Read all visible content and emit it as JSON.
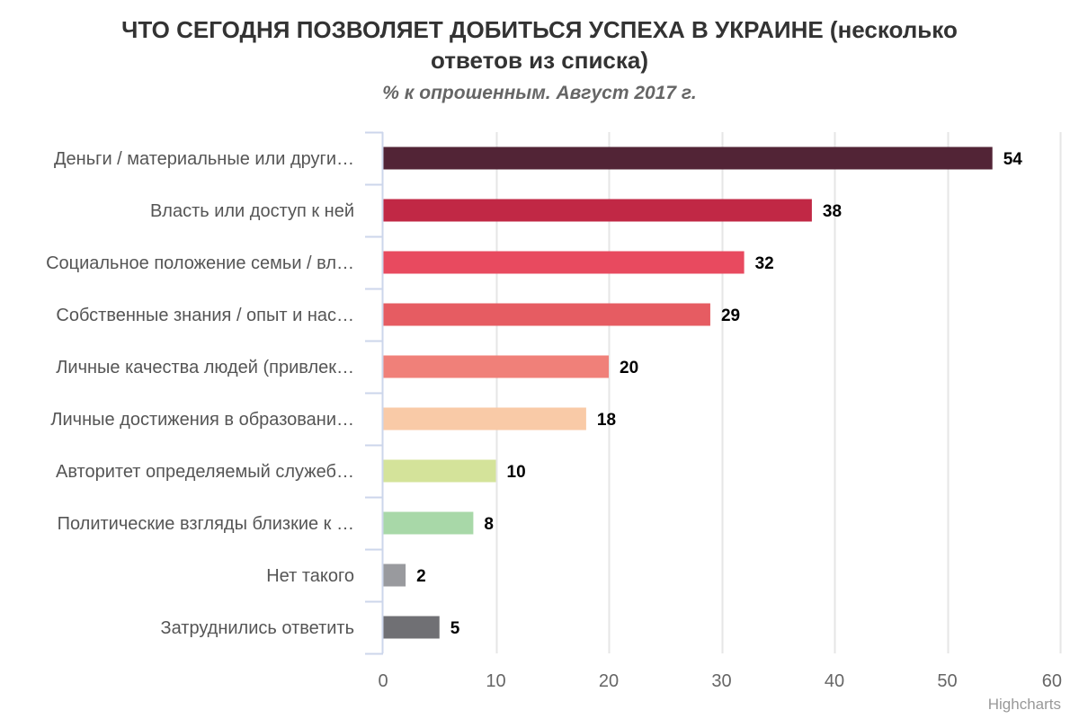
{
  "chart_data": {
    "type": "bar",
    "orientation": "horizontal",
    "title_lines": [
      "ЧТО СЕГОДНЯ ПОЗВОЛЯЕТ ДОБИТЬСЯ УСПЕХА В УКРАИНЕ (несколько",
      "ответов из списка)"
    ],
    "subtitle": "% к опрошенным. Август 2017 г.",
    "xlabel": "",
    "ylabel": "",
    "categories": [
      "Деньги / материальные или други…",
      "Власть или доступ к ней",
      "Социальное положение семьи / вл…",
      "Собственные знания / опыт и нас…",
      "Личные качества людей (привлек…",
      "Личные достижения в образовани…",
      "Авторитет определяемый служеб…",
      "Политические взгляды близкие к …",
      "Нет такого",
      "Затруднились ответить"
    ],
    "values": [
      54,
      38,
      32,
      29,
      20,
      18,
      10,
      8,
      2,
      5
    ],
    "colors": [
      "#522436",
      "#c12845",
      "#e84a5f",
      "#e65c62",
      "#f08079",
      "#f9caa7",
      "#d4e39a",
      "#a8d8a8",
      "#999a9e",
      "#707074"
    ],
    "value_axis": {
      "min": 0,
      "max": 60,
      "ticks": [
        0,
        10,
        20,
        30,
        40,
        50,
        60
      ]
    },
    "grid": true,
    "legend": "none",
    "data_labels": true
  },
  "credits": "Highcharts"
}
